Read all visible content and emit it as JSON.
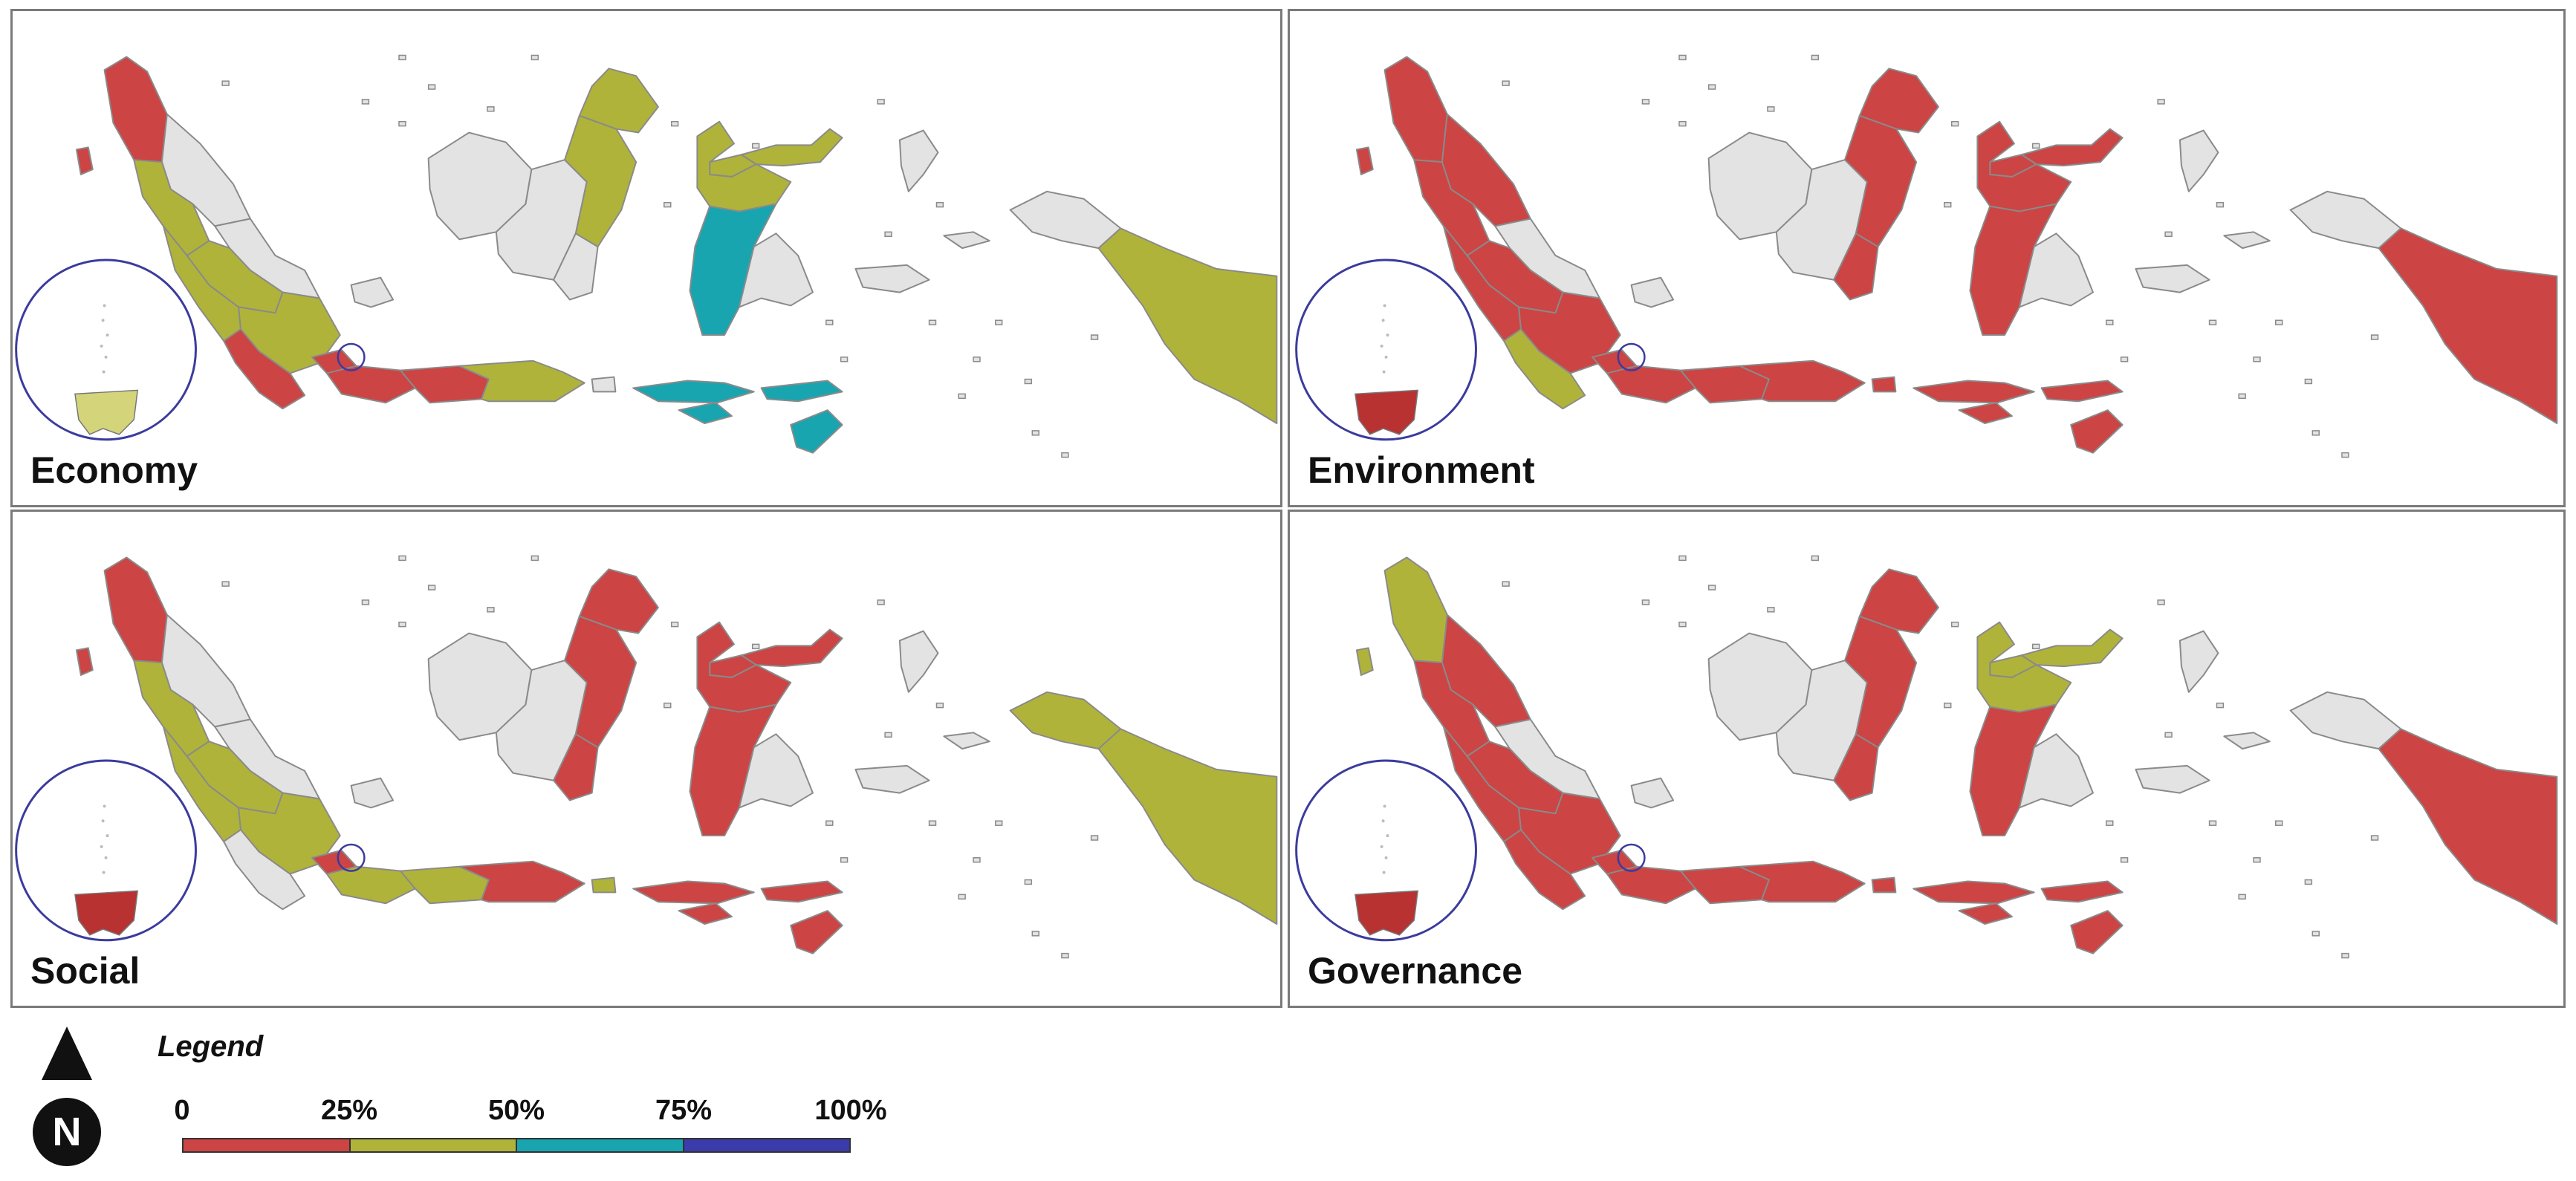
{
  "colors": {
    "land": "#e3e3e3",
    "border": "#8a8a8a",
    "inset_ring": "#3b3b9e",
    "class_0_25": "#cc4444",
    "class_25_50": "#b0b33a",
    "class_50_75": "#19a5b0",
    "class_75_100": "#3b3bab"
  },
  "panels": [
    {
      "title": "Economy",
      "inset_color": "#d4d47a",
      "regions": {
        "aceh": "class_0_25",
        "sumut": "land",
        "nias": "class_0_25",
        "sumbar": "class_25_50",
        "riau": "land",
        "jambi": "class_25_50",
        "sumsel": "class_25_50",
        "bengkulu": "class_25_50",
        "lampung": "class_0_25",
        "babel": "land",
        "jakarta": "class_0_25",
        "jabar": "class_0_25",
        "jateng": "class_0_25",
        "jatim": "class_25_50",
        "bali": "land",
        "ntb": "class_50_75",
        "ntt": "class_50_75",
        "kalbar": "land",
        "kalteng": "land",
        "kalsel": "land",
        "kaltim": "class_25_50",
        "kaltara": "class_25_50",
        "sulut": "class_25_50",
        "gorontalo": "class_25_50",
        "sulteng": "class_25_50",
        "sulsel": "class_50_75",
        "sultra": "land",
        "maluku": "land",
        "malut": "land",
        "papuabarat": "land",
        "papua": "class_25_50"
      }
    },
    {
      "title": "Environment",
      "inset_color": "#b83232",
      "regions": {
        "aceh": "class_0_25",
        "sumut": "class_0_25",
        "nias": "class_0_25",
        "sumbar": "class_0_25",
        "riau": "land",
        "jambi": "class_0_25",
        "sumsel": "class_0_25",
        "bengkulu": "class_0_25",
        "lampung": "class_25_50",
        "babel": "land",
        "jakarta": "class_0_25",
        "jabar": "class_0_25",
        "jateng": "class_0_25",
        "jatim": "class_0_25",
        "bali": "class_0_25",
        "ntb": "class_0_25",
        "ntt": "class_0_25",
        "kalbar": "land",
        "kalteng": "land",
        "kalsel": "class_0_25",
        "kaltim": "class_0_25",
        "kaltara": "class_0_25",
        "sulut": "class_0_25",
        "gorontalo": "class_0_25",
        "sulteng": "class_0_25",
        "sulsel": "class_0_25",
        "sultra": "land",
        "maluku": "land",
        "malut": "land",
        "papuabarat": "land",
        "papua": "class_0_25"
      }
    },
    {
      "title": "Social",
      "inset_color": "#b83232",
      "regions": {
        "aceh": "class_0_25",
        "sumut": "land",
        "nias": "class_0_25",
        "sumbar": "class_25_50",
        "riau": "land",
        "jambi": "class_25_50",
        "sumsel": "class_25_50",
        "bengkulu": "class_25_50",
        "lampung": "land",
        "babel": "land",
        "jakarta": "class_0_25",
        "jabar": "class_25_50",
        "jateng": "class_25_50",
        "jatim": "class_0_25",
        "bali": "class_25_50",
        "ntb": "class_0_25",
        "ntt": "class_0_25",
        "kalbar": "land",
        "kalteng": "land",
        "kalsel": "class_0_25",
        "kaltim": "class_0_25",
        "kaltara": "class_0_25",
        "sulut": "class_0_25",
        "gorontalo": "class_0_25",
        "sulteng": "class_0_25",
        "sulsel": "class_0_25",
        "sultra": "land",
        "maluku": "land",
        "malut": "land",
        "papuabarat": "class_25_50",
        "papua": "class_25_50"
      }
    },
    {
      "title": "Governance",
      "inset_color": "#b83232",
      "regions": {
        "aceh": "class_25_50",
        "sumut": "class_0_25",
        "nias": "class_25_50",
        "sumbar": "class_0_25",
        "riau": "land",
        "jambi": "class_0_25",
        "sumsel": "class_0_25",
        "bengkulu": "class_0_25",
        "lampung": "class_0_25",
        "babel": "land",
        "jakarta": "class_0_25",
        "jabar": "class_0_25",
        "jateng": "class_0_25",
        "jatim": "class_0_25",
        "bali": "class_0_25",
        "ntb": "class_0_25",
        "ntt": "class_0_25",
        "kalbar": "land",
        "kalteng": "land",
        "kalsel": "class_0_25",
        "kaltim": "class_0_25",
        "kaltara": "class_0_25",
        "sulut": "class_25_50",
        "gorontalo": "class_25_50",
        "sulteng": "class_25_50",
        "sulsel": "class_0_25",
        "sultra": "land",
        "maluku": "land",
        "malut": "land",
        "papuabarat": "land",
        "papua": "class_0_25"
      }
    }
  ],
  "legend": {
    "title": "Legend",
    "north_label": "N",
    "ticks": [
      "0",
      "25%",
      "50%",
      "75%",
      "100%"
    ],
    "classes": [
      "class_0_25",
      "class_25_50",
      "class_50_75",
      "class_75_100"
    ]
  }
}
